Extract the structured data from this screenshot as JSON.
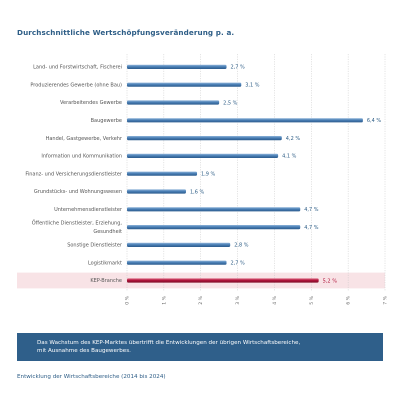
{
  "chart_data": {
    "type": "bar",
    "orientation": "horizontal",
    "title": "Durchschnittliche Wertschöpfungsveränderung p. a.",
    "categories": [
      "Land- und Forstwirtschaft, Fischerei",
      "Produzierendes Gewerbe (ohne Bau)",
      "Verarbeitendes Gewerbe",
      "Baugewerbe",
      "Handel, Gastgewerbe, Verkehr",
      "Information und Kommunikation",
      "Finanz- und Versicherungsdienstleister",
      "Grundstücks- und Wohnungswesen",
      "Unternehmensdienstleister",
      "Öffentliche Dienstleister, Erziehung, Gesundheit",
      "Sonstige Dienstleister",
      "Logistikmarkt",
      "KEP-Branche"
    ],
    "values": [
      2.7,
      3.1,
      2.5,
      6.4,
      4.2,
      4.1,
      1.9,
      1.6,
      4.7,
      4.7,
      2.8,
      2.7,
      5.2
    ],
    "value_labels": [
      "2,7 %",
      "3,1 %",
      "2,5 %",
      "6,4 %",
      "4,2 %",
      "4,1 %",
      "1,9 %",
      "1,6 %",
      "4,7 %",
      "4,7 %",
      "2,8 %",
      "2,7 %",
      "5,2 %"
    ],
    "highlight": "KEP-Branche",
    "xlim": [
      0,
      7
    ],
    "x_ticks": [
      0,
      1,
      2,
      3,
      4,
      5,
      6,
      7
    ],
    "x_tick_labels": [
      "0 %",
      "1 %",
      "2 %",
      "3 %",
      "4 %",
      "5 %",
      "6 %",
      "7 %"
    ],
    "xlabel": "",
    "ylabel": "",
    "grid": true,
    "colors": {
      "bar": "#4a7fb5",
      "bar_highlight": "#b0143a",
      "highlight_band": "#f8e3e6",
      "value_label": "#2d5d86",
      "value_label_highlight": "#b0143a",
      "category_label": "#555555",
      "grid": "#c8c8c8",
      "title": "#2d5d86"
    }
  },
  "note": {
    "line1": "Das Wachstum des KEP-Marktes übertrifft die Entwicklungen der übrigen Wirtschaftsbereiche,",
    "line2": "mit Ausnahme des Baugewerbes."
  },
  "source": "Entwicklung der Wirtschaftsbereiche (2014 bis 2024)"
}
